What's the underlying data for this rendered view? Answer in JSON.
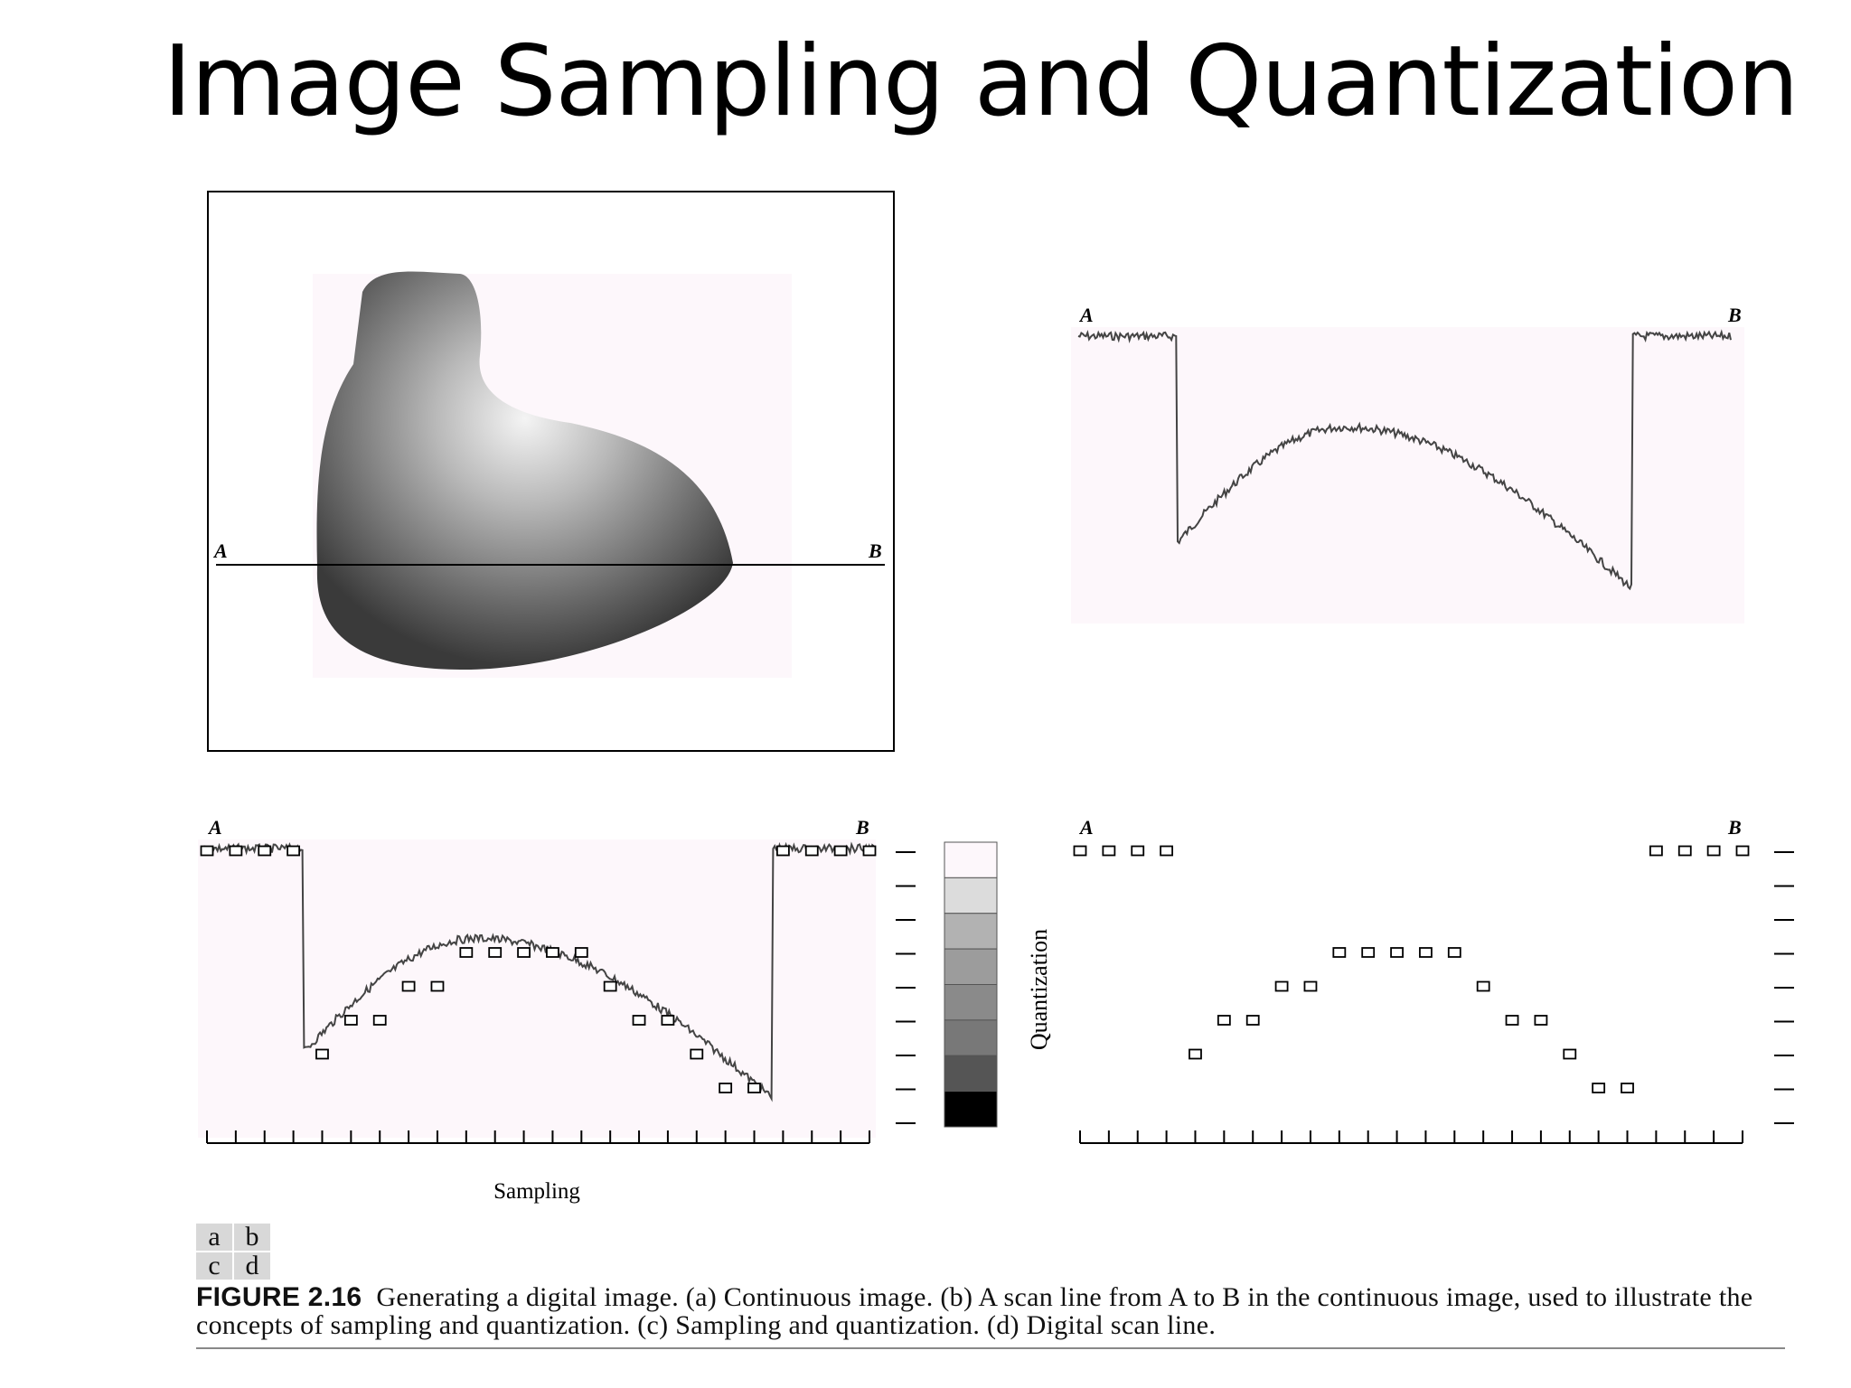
{
  "slide": {
    "title": "Image Sampling and Quantization"
  },
  "figure": {
    "panel_labels": [
      "a",
      "b",
      "c",
      "d"
    ],
    "caption_label": "FIGURE 2.16",
    "caption_text": "Generating a digital image. (a) Continuous image. (b) A scan line from A to B in the continuous image, used to illustrate the concepts of sampling and quantization. (c) Sampling and quantization. (d) Digital scan line.",
    "endpoint_a": "A",
    "endpoint_b": "B",
    "sampling_label": "Sampling",
    "quantization_label": "Quantization"
  },
  "chart_data": [
    {
      "type": "line",
      "panel": "b",
      "description_visible": "scan line from A to B",
      "x_range": [
        0,
        1
      ],
      "level_range": [
        0,
        8
      ],
      "endpoints": [
        "A",
        "B"
      ]
    },
    {
      "type": "scatter",
      "panel": "c",
      "xlabel": "Sampling",
      "ylabel": "Quantization",
      "levels": 8,
      "samples": [
        8,
        8,
        8,
        8,
        2,
        3,
        3,
        4,
        4,
        5,
        5,
        5,
        5,
        5,
        4,
        3,
        3,
        2,
        1,
        1,
        8,
        8,
        8,
        8
      ],
      "gray_scale_levels": [
        "#fdf7fb",
        "#dcdcdc",
        "#b2b2b2",
        "#9c9c9c",
        "#8a8a8a",
        "#787878",
        "#555555",
        "#000000"
      ]
    },
    {
      "type": "scatter",
      "panel": "d",
      "levels": 8,
      "samples": [
        8,
        8,
        8,
        8,
        2,
        3,
        3,
        4,
        4,
        5,
        5,
        5,
        5,
        5,
        4,
        3,
        3,
        2,
        1,
        1,
        8,
        8,
        8,
        8
      ]
    }
  ]
}
